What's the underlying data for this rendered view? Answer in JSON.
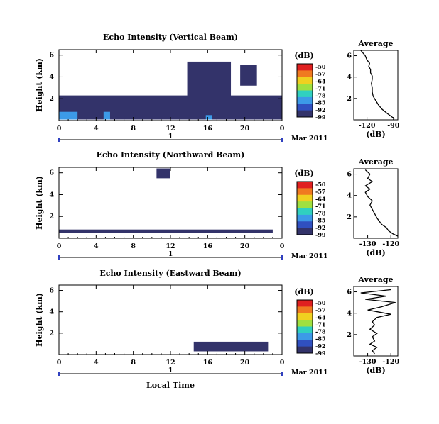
{
  "panels": [
    {
      "title": "Echo Intensity (Vertical Beam)",
      "ylabel": "Height (km)",
      "yticks": [
        "2",
        "4",
        "6"
      ],
      "xticks": [
        "0",
        "4",
        "8",
        "12",
        "16",
        "20",
        "0"
      ],
      "day_label": "1",
      "date_label": "Mar 2011",
      "colorbar": {
        "unit": "(dB)",
        "labels": [
          "-50",
          "-57",
          "-64",
          "-71",
          "-78",
          "-85",
          "-92",
          "-99"
        ]
      },
      "avg": {
        "title": "Average",
        "xlabel": "(dB)",
        "xticks": [
          "-120",
          "-90"
        ],
        "yticks": [
          "2",
          "4",
          "6"
        ]
      }
    },
    {
      "title": "Echo Intensity (Northward Beam)",
      "ylabel": "Height (km)",
      "yticks": [
        "2",
        "4",
        "6"
      ],
      "xticks": [
        "0",
        "4",
        "8",
        "12",
        "16",
        "20",
        "0"
      ],
      "day_label": "1",
      "date_label": "Mar 2011",
      "colorbar": {
        "unit": "(dB)",
        "labels": [
          "-50",
          "-57",
          "-64",
          "-71",
          "-78",
          "-85",
          "-92",
          "-99"
        ]
      },
      "avg": {
        "title": "Average",
        "xlabel": "(dB)",
        "xticks": [
          "-130",
          "-120"
        ],
        "yticks": [
          "2",
          "4",
          "6"
        ]
      }
    },
    {
      "title": "Echo Intensity (Eastward Beam)",
      "ylabel": "Height (km)",
      "yticks": [
        "2",
        "4",
        "6"
      ],
      "xticks": [
        "0",
        "4",
        "8",
        "12",
        "16",
        "20",
        "0"
      ],
      "day_label": "1",
      "date_label": "Mar 2011",
      "colorbar": {
        "unit": "(dB)",
        "labels": [
          "-50",
          "-57",
          "-64",
          "-71",
          "-78",
          "-85",
          "-92",
          "-99"
        ]
      },
      "avg": {
        "title": "Average",
        "xlabel": "(dB)",
        "xticks": [
          "-130",
          "-120"
        ],
        "yticks": [
          "2",
          "4",
          "6"
        ]
      }
    }
  ],
  "xlabel": "Local Time",
  "colors": {
    "echo": "#33336a",
    "strong": "#3c9ae8",
    "axis": "#000000"
  },
  "chart_data": [
    {
      "type": "heatmap",
      "title": "Echo Intensity (Vertical Beam)",
      "ylabel": "Height (km)",
      "xlim": [
        0,
        24
      ],
      "ylim": [
        0,
        6.5
      ],
      "regions": [
        {
          "t0": 0,
          "t1": 24,
          "h0": 0.1,
          "h1": 2.3,
          "level": "-99"
        },
        {
          "t0": 13.8,
          "t1": 18.5,
          "h0": 2,
          "h1": 5.4,
          "level": "-99"
        },
        {
          "t0": 19.5,
          "t1": 21.3,
          "h0": 3.2,
          "h1": 5.1,
          "level": "-99"
        },
        {
          "t0": 0,
          "t1": 2,
          "h0": 0.1,
          "h1": 0.8,
          "level": "-85"
        },
        {
          "t0": 4.8,
          "t1": 5.5,
          "h0": 0.1,
          "h1": 0.8,
          "level": "-85"
        },
        {
          "t0": 15.8,
          "t1": 16.5,
          "h0": 0.1,
          "h1": 0.5,
          "level": "-85"
        }
      ]
    },
    {
      "type": "heatmap",
      "title": "Echo Intensity (Northward Beam)",
      "ylabel": "Height (km)",
      "xlim": [
        0,
        24
      ],
      "ylim": [
        0,
        6.5
      ],
      "regions": [
        {
          "t0": 0,
          "t1": 23,
          "h0": 0.5,
          "h1": 0.8,
          "level": "-99"
        },
        {
          "t0": 10.5,
          "t1": 12,
          "h0": 5.5,
          "h1": 6.4,
          "level": "-99"
        }
      ]
    },
    {
      "type": "heatmap",
      "title": "Echo Intensity (Eastward Beam)",
      "ylabel": "Height (km)",
      "xlim": [
        0,
        24
      ],
      "ylim": [
        0,
        6.5
      ],
      "regions": [
        {
          "t0": 14.5,
          "t1": 22.5,
          "h0": 0.3,
          "h1": 1.2,
          "level": "-99"
        }
      ]
    },
    {
      "type": "line",
      "title": "Average",
      "xlabel": "(dB)",
      "xlim": [
        -135,
        -85
      ],
      "ylim": [
        0,
        6.5
      ],
      "x": [
        -89,
        -92,
        -97,
        -103,
        -107,
        -110,
        -113,
        -114,
        -114,
        -115,
        -114,
        -114,
        -116,
        -116,
        -118,
        -117,
        -120,
        -122,
        -127
      ],
      "y": [
        0.1,
        0.3,
        0.6,
        1.0,
        1.4,
        1.8,
        2.2,
        2.6,
        3.0,
        3.4,
        3.8,
        4.1,
        4.4,
        4.7,
        5.0,
        5.3,
        5.6,
        6.0,
        6.5
      ]
    },
    {
      "type": "line",
      "title": "Average",
      "xlabel": "(dB)",
      "xlim": [
        -136,
        -117
      ],
      "ylim": [
        0,
        6.5
      ],
      "x": [
        -117,
        -119,
        -121,
        -122,
        -124,
        -125,
        -126,
        -127,
        -128,
        -129,
        -128,
        -130,
        -131,
        -129,
        -131,
        -128,
        -130,
        -129,
        -131
      ],
      "y": [
        0.2,
        0.4,
        0.7,
        1.0,
        1.3,
        1.6,
        1.9,
        2.3,
        2.7,
        3.1,
        3.5,
        3.9,
        4.3,
        4.6,
        4.9,
        5.3,
        5.6,
        6.0,
        6.4
      ]
    },
    {
      "type": "line",
      "title": "Average",
      "xlabel": "(dB)",
      "xlim": [
        -136,
        -117
      ],
      "ylim": [
        0,
        6.5
      ],
      "x": [
        -127,
        -128,
        -126,
        -129,
        -127,
        -128,
        -126,
        -129,
        -127,
        -128,
        -126,
        -120,
        -130,
        -124,
        -118,
        -131,
        -122,
        -133,
        -120
      ],
      "y": [
        0.2,
        0.5,
        0.8,
        1.1,
        1.4,
        1.8,
        2.1,
        2.5,
        2.9,
        3.2,
        3.6,
        3.9,
        4.3,
        4.6,
        5.0,
        5.3,
        5.6,
        5.9,
        6.2
      ]
    }
  ]
}
